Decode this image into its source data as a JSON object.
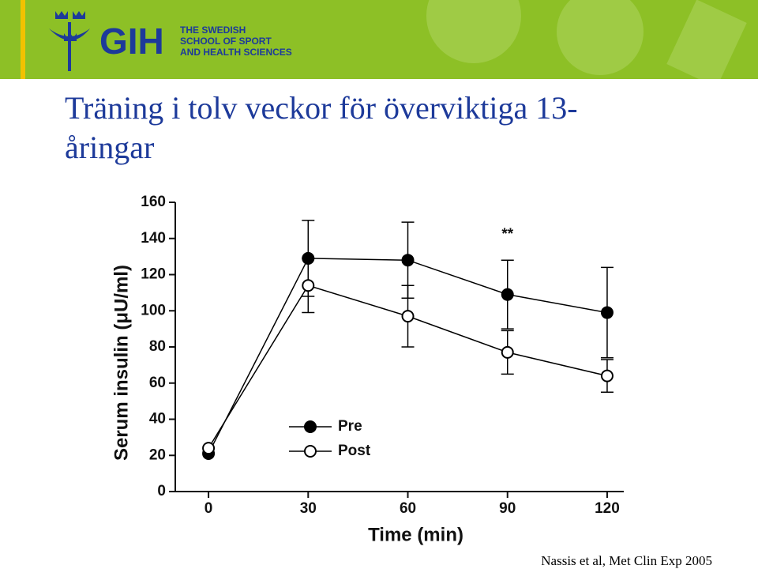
{
  "header": {
    "logo": "GIH",
    "school": [
      "THE SWEDISH",
      "SCHOOL OF SPORT",
      "AND HEALTH SCIENCES"
    ]
  },
  "slide": {
    "title": "Träning i tolv veckor för överviktiga 13-åringar",
    "source": "Nassis et al, Met Clin Exp 2005"
  },
  "chart_data": {
    "type": "line",
    "x_label": "Time (min)",
    "y_label": "Serum insulin (μU/ml)",
    "x": [
      0,
      30,
      60,
      90,
      120
    ],
    "series": [
      {
        "name": "Pre",
        "color": "#000000",
        "marker_fill": "#000000",
        "values": [
          21,
          129,
          128,
          109,
          99
        ],
        "errors": [
          null,
          21,
          21,
          19,
          25
        ]
      },
      {
        "name": "Post",
        "color": "#000000",
        "marker_fill": "#ffffff",
        "values": [
          24,
          114,
          97,
          77,
          64
        ],
        "errors": [
          null,
          15,
          17,
          12,
          9
        ]
      }
    ],
    "annotations": [
      {
        "text": "**",
        "x": 90,
        "y": 142
      }
    ],
    "xlim": [
      -10,
      125
    ],
    "ylim": [
      0,
      160
    ],
    "xticks": [
      0,
      30,
      60,
      90,
      120
    ],
    "yticks": [
      0,
      20,
      40,
      60,
      80,
      100,
      120,
      140,
      160
    ],
    "legend": "bottom"
  }
}
